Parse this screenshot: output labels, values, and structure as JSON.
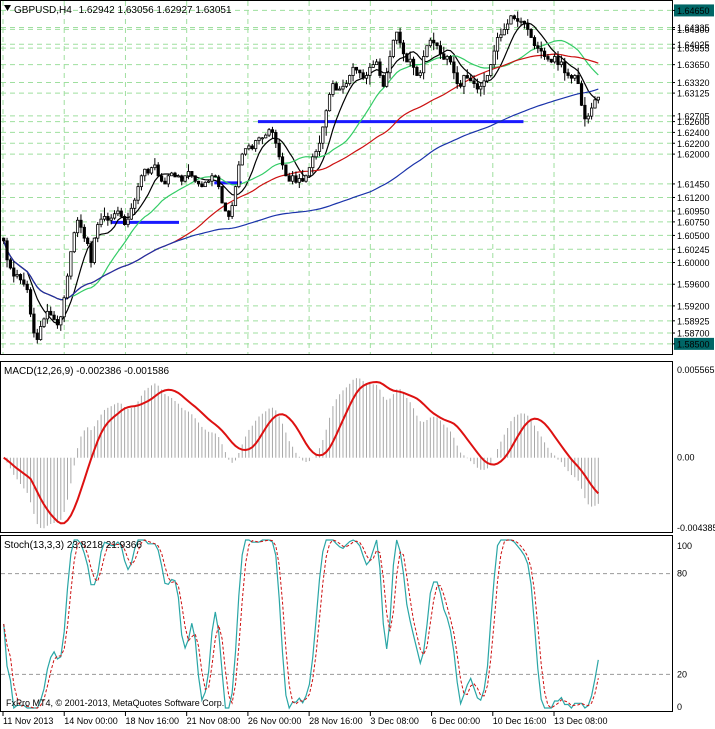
{
  "header": {
    "symbol": "GBPUSD,H4",
    "ohlc": "1.62942 1.63056 1.62927 1.63051"
  },
  "footer": {
    "copyright": "FxPro MT4, © 2001-2013, MetaQuotes Software Corp."
  },
  "colors": {
    "grid": "#9fdf9f",
    "candle": "#000000",
    "ma_fast": "#000000",
    "ma_mid": "#33cc66",
    "ma_slow": "#cc1111",
    "ma_long": "#1a33aa",
    "level": "#1a1aff",
    "macd_hist": "#a8a8a8",
    "macd_signal": "#dd1111",
    "stoch_main": "#2aa6a6",
    "stoch_signal": "#cc1111",
    "tag_bg": "#006666"
  },
  "chart_data": [
    {
      "type": "candlestick",
      "title": "GBPUSD,H4",
      "ylim": [
        1.5835,
        1.6475
      ],
      "price_scale": [
        "1.64650",
        "1.64335",
        "1.64300",
        "1.64025",
        "1.63955",
        "1.63650",
        "1.63320",
        "1.63125",
        "1.62705",
        "1.62600",
        "1.62400",
        "1.62200",
        "1.62000",
        "1.61450",
        "1.61200",
        "1.60950",
        "1.60750",
        "1.60500",
        "1.60245",
        "1.60000",
        "1.59600",
        "1.59200",
        "1.58925",
        "1.58700",
        "1.58500"
      ],
      "highlighted_levels": [
        "1.64650",
        "1.58500"
      ],
      "horizontal_levels": [
        {
          "from": 0.428,
          "to": 0.872,
          "price": 1.626
        },
        {
          "from": 0.355,
          "to": 0.401,
          "price": 1.6147
        },
        {
          "from": 0.182,
          "to": 0.296,
          "price": 1.6074
        }
      ],
      "closes": [
        1.604,
        1.6005,
        1.599,
        1.5975,
        1.5978,
        1.5968,
        1.596,
        1.595,
        1.5905,
        1.587,
        1.5858,
        1.5882,
        1.5896,
        1.591,
        1.5903,
        1.5895,
        1.5885,
        1.59,
        1.5935,
        1.5975,
        1.602,
        1.6055,
        1.6078,
        1.6065,
        1.6045,
        1.6035,
        1.6,
        1.6045,
        1.607,
        1.608,
        1.6085,
        1.6078,
        1.6082,
        1.609,
        1.6095,
        1.6085,
        1.607,
        1.608,
        1.61,
        1.6115,
        1.614,
        1.616,
        1.6172,
        1.6165,
        1.6175,
        1.618,
        1.616,
        1.615,
        1.6145,
        1.616,
        1.6165,
        1.6158,
        1.616,
        1.615,
        1.616,
        1.6168,
        1.616,
        1.615,
        1.6145,
        1.614,
        1.6148,
        1.615,
        1.616,
        1.6158,
        1.614,
        1.611,
        1.6095,
        1.6085,
        1.6105,
        1.614,
        1.618,
        1.62,
        1.621,
        1.6215,
        1.621,
        1.6225,
        1.623,
        1.623,
        1.6235,
        1.6245,
        1.624,
        1.622,
        1.6195,
        1.618,
        1.616,
        1.615,
        1.616,
        1.6148,
        1.6155,
        1.615,
        1.616,
        1.6175,
        1.6195,
        1.6205,
        1.622,
        1.625,
        1.628,
        1.631,
        1.633,
        1.6318,
        1.632,
        1.6325,
        1.633,
        1.6345,
        1.636,
        1.6355,
        1.635,
        1.634,
        1.6345,
        1.636,
        1.6365,
        1.637,
        1.6345,
        1.6325,
        1.635,
        1.638,
        1.641,
        1.6425,
        1.6405,
        1.6385,
        1.637,
        1.6375,
        1.636,
        1.6345,
        1.635,
        1.638,
        1.64,
        1.641,
        1.6405,
        1.64,
        1.6385,
        1.6375,
        1.638,
        1.637,
        1.635,
        1.633,
        1.6325,
        1.6345,
        1.634,
        1.6335,
        1.633,
        1.632,
        1.6325,
        1.6335,
        1.6345,
        1.6365,
        1.639,
        1.6415,
        1.642,
        1.643,
        1.644,
        1.6455,
        1.645,
        1.6445,
        1.6445,
        1.644,
        1.643,
        1.6415,
        1.64,
        1.6395,
        1.639,
        1.638,
        1.6375,
        1.637,
        1.638,
        1.6365,
        1.637,
        1.635,
        1.6345,
        1.634,
        1.6345,
        1.633,
        1.629,
        1.6265,
        1.627,
        1.6285,
        1.63,
        1.6305
      ],
      "xticks": [
        "11 Nov 2013",
        "14 Nov 00:00",
        "18 Nov 16:00",
        "21 Nov 08:00",
        "26 Nov 00:00",
        "28 Nov 16:00",
        "3 Dec 08:00",
        "6 Dec 00:00",
        "10 Dec 16:00",
        "13 Dec 08:00"
      ]
    },
    {
      "type": "bar",
      "title": "MACD(12,26,9) -0.002386 -0.001586",
      "ylim": [
        -0.004385,
        0.005565
      ],
      "yticks": [
        "0.005565",
        "0.00",
        "-0.004385"
      ],
      "series": [
        {
          "name": "MACD",
          "kind": "histogram"
        },
        {
          "name": "Signal",
          "kind": "line"
        }
      ]
    },
    {
      "type": "line",
      "title": "Stoch(13,3,3) 23.8218 21.9366",
      "ylim": [
        0,
        100
      ],
      "yticks": [
        "100",
        "80",
        "20",
        "0"
      ],
      "levels": [
        80,
        20
      ],
      "series": [
        {
          "name": "%K",
          "kind": "main"
        },
        {
          "name": "%D",
          "kind": "signal"
        }
      ]
    }
  ]
}
